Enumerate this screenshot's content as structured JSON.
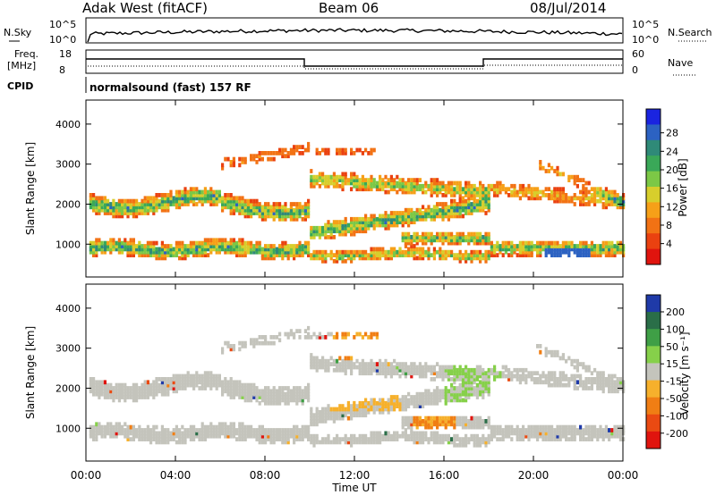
{
  "header": {
    "station": "Adak West (fitACF)",
    "beam": "Beam 06",
    "date": "08/Jul/2014"
  },
  "summary_panels": {
    "nsky_label": "N.Sky",
    "nsky_ticks": [
      "10^5",
      "10^0"
    ],
    "nsearch_label": "N.Search",
    "nsearch_ticks": [
      "10^5",
      "10^0"
    ],
    "freq_label_line1": "Freq.",
    "freq_label_line2": "[MHz]",
    "freq_ticks": [
      "18",
      "8"
    ],
    "nave_label": "Nave",
    "nave_ticks": [
      "60",
      "0"
    ],
    "cpid_label": "CPID",
    "cpid_text": "normalsound (fast) 157 RF"
  },
  "chart_data": [
    {
      "type": "heatmap",
      "name": "power",
      "ylabel": "Slant Range [km]",
      "yticks": [
        1000,
        2000,
        3000,
        4000
      ],
      "ylim": [
        180,
        4600
      ],
      "xlim": [
        0,
        24
      ],
      "colorbar_label": "Power [dB]",
      "colorbar_ticks": [
        4,
        8,
        12,
        16,
        20,
        24,
        28
      ],
      "colorbar_colors": [
        "#1a24e0",
        "#2c62c2",
        "#2f8a78",
        "#3aa858",
        "#7cc846",
        "#d7ce2c",
        "#f6a018",
        "#f27214",
        "#ea4110",
        "#e0140e"
      ]
    },
    {
      "type": "heatmap",
      "name": "velocity",
      "ylabel": "Slant Range [km]",
      "yticks": [
        1000,
        2000,
        3000,
        4000
      ],
      "ylim": [
        180,
        4600
      ],
      "xlim": [
        0,
        24
      ],
      "xlabel": "Time UT",
      "xticks": [
        "00:00",
        "04:00",
        "08:00",
        "12:00",
        "16:00",
        "20:00",
        "00:00"
      ],
      "colorbar_label": "Velocity [m s⁻¹]",
      "colorbar_ticks": [
        200,
        100,
        50,
        15,
        -15,
        -50,
        -100,
        -200
      ],
      "colorbar_colors": [
        "#1f3aa8",
        "#2a6e48",
        "#3f9f46",
        "#86d04a",
        "#c4c4bc",
        "#f6b02c",
        "#f07e14",
        "#ea4a12",
        "#e0140e"
      ]
    }
  ]
}
